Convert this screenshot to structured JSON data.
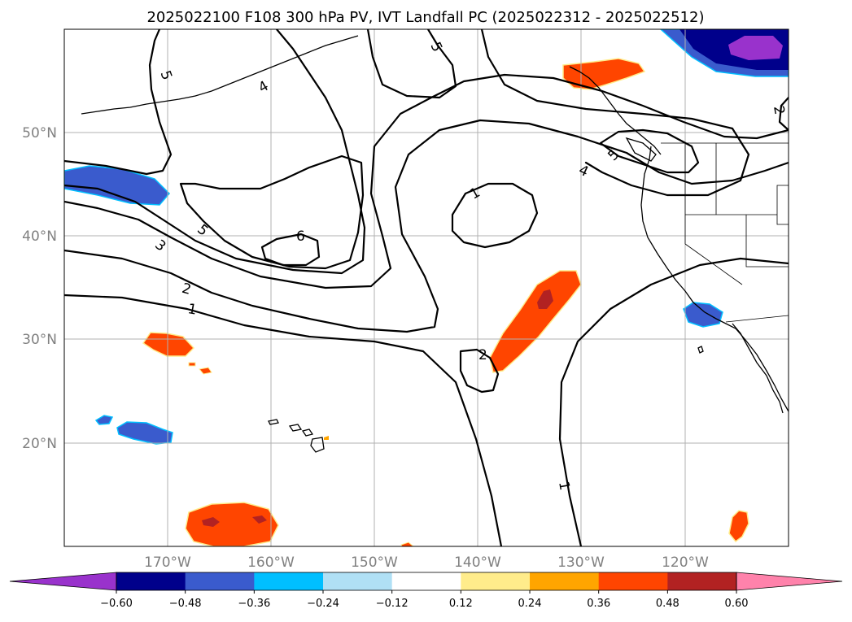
{
  "title": "2025022100 F108 300 hPa PV, IVT Landfall PC (2025022312 - 2025022512)",
  "lon_ticks": [
    "170°W",
    "160°W",
    "150°W",
    "140°W",
    "130°W",
    "120°W"
  ],
  "lat_ticks": [
    "50°N",
    "40°N",
    "30°N",
    "20°N"
  ],
  "contour_labels": [
    {
      "id": "c5a",
      "text": "5"
    },
    {
      "id": "c4a",
      "text": "4"
    },
    {
      "id": "c5b",
      "text": "5"
    },
    {
      "id": "c5c",
      "text": "5"
    },
    {
      "id": "c6",
      "text": "6"
    },
    {
      "id": "c3",
      "text": "3"
    },
    {
      "id": "c2a",
      "text": "2"
    },
    {
      "id": "c1a",
      "text": "1"
    },
    {
      "id": "c1b",
      "text": "1"
    },
    {
      "id": "c4b",
      "text": "4"
    },
    {
      "id": "c5d",
      "text": "5"
    },
    {
      "id": "c2b",
      "text": "2"
    },
    {
      "id": "c2c",
      "text": "2"
    },
    {
      "id": "c1c",
      "text": "1"
    }
  ],
  "colorbar": {
    "ticks": [
      "−0.60",
      "−0.48",
      "−0.36",
      "−0.24",
      "−0.12",
      "0.12",
      "0.24",
      "0.36",
      "0.48",
      "0.60"
    ],
    "levels": [
      -0.6,
      -0.48,
      -0.36,
      -0.24,
      -0.12,
      0.12,
      0.24,
      0.36,
      0.48,
      0.6
    ],
    "colors": [
      "#9932cc",
      "#00008b",
      "#3a5bcd",
      "#00bfff",
      "#b0e0f5",
      "#ffffff",
      "#ffec8b",
      "#ffa500",
      "#ff4500",
      "#b22222",
      "#ff82ab"
    ]
  },
  "colors": {
    "pos_shading": "#ff4500",
    "pos_core": "#b22222",
    "pos_edge": "#ffec8b",
    "neg_shading": "#3a5bcd",
    "neg_deep": "#00008b",
    "neg_core": "#9932cc",
    "neg_edge": "#00bfff"
  }
}
